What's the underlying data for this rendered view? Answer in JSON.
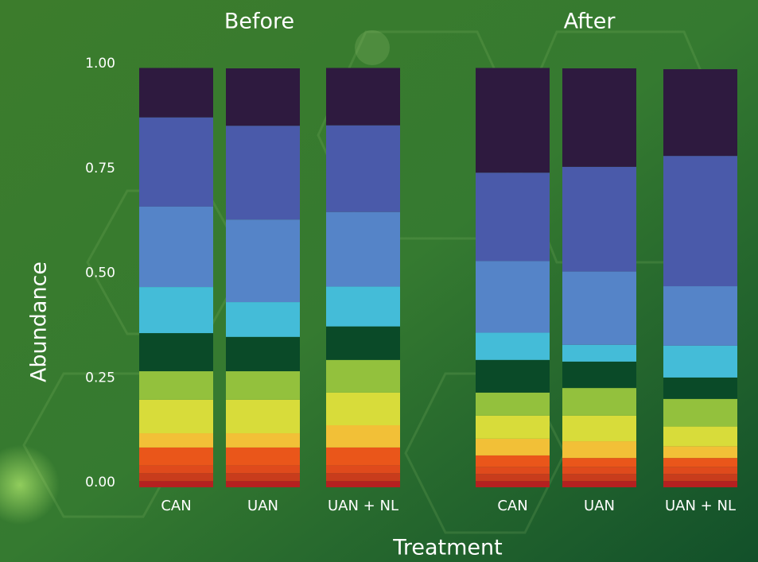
{
  "ylabel": "Abundance",
  "xlabel": "Treatment",
  "chart_data": [
    {
      "type": "stacked_bar",
      "title": "Before",
      "categories": [
        "CAN",
        "UAN",
        "UAN + NL"
      ],
      "ylim": [
        0,
        1
      ],
      "yticks": [
        {
          "value": 0,
          "label": "0.00"
        },
        {
          "value": 0.25,
          "label": "0.25"
        },
        {
          "value": 0.5,
          "label": "0.50"
        },
        {
          "value": 0.75,
          "label": "0.75"
        },
        {
          "value": 1,
          "label": "1.00"
        }
      ],
      "series": [
        {
          "color": "#b52020",
          "values": [
            0.015,
            0.015,
            0.015
          ]
        },
        {
          "color": "#c83c1c",
          "values": [
            0.019,
            0.019,
            0.019
          ]
        },
        {
          "color": "#df4a1c",
          "values": [
            0.019,
            0.019,
            0.019
          ]
        },
        {
          "color": "#ea561a",
          "values": [
            0.042,
            0.042,
            0.042
          ]
        },
        {
          "color": "#f2c037",
          "values": [
            0.034,
            0.034,
            0.053
          ]
        },
        {
          "color": "#d8dc3a",
          "values": [
            0.08,
            0.08,
            0.078
          ]
        },
        {
          "color": "#93c13d",
          "values": [
            0.068,
            0.068,
            0.078
          ]
        },
        {
          "color": "#0a4a28",
          "values": [
            0.091,
            0.082,
            0.08
          ]
        },
        {
          "color": "#44bcd8",
          "values": [
            0.11,
            0.083,
            0.095
          ]
        },
        {
          "color": "#5584c8",
          "values": [
            0.192,
            0.197,
            0.178
          ]
        },
        {
          "color": "#4a5aaa",
          "values": [
            0.213,
            0.224,
            0.207
          ]
        },
        {
          "color": "#2e1a3f",
          "values": [
            0.118,
            0.137,
            0.137
          ]
        }
      ]
    },
    {
      "type": "stacked_bar",
      "title": "After",
      "categories": [
        "CAN",
        "UAN",
        "UAN + NL"
      ],
      "ylim": [
        0,
        1
      ],
      "series": [
        {
          "color": "#b52020",
          "values": [
            0.015,
            0.015,
            0.015
          ]
        },
        {
          "color": "#c83c1c",
          "values": [
            0.017,
            0.017,
            0.017
          ]
        },
        {
          "color": "#df4a1c",
          "values": [
            0.017,
            0.017,
            0.017
          ]
        },
        {
          "color": "#ea561a",
          "values": [
            0.027,
            0.021,
            0.021
          ]
        },
        {
          "color": "#f2c037",
          "values": [
            0.04,
            0.04,
            0.028
          ]
        },
        {
          "color": "#d8dc3a",
          "values": [
            0.055,
            0.061,
            0.047
          ]
        },
        {
          "color": "#93c13d",
          "values": [
            0.055,
            0.066,
            0.066
          ]
        },
        {
          "color": "#0a4a28",
          "values": [
            0.078,
            0.063,
            0.051
          ]
        },
        {
          "color": "#44bcd8",
          "values": [
            0.065,
            0.04,
            0.076
          ]
        },
        {
          "color": "#5584c8",
          "values": [
            0.171,
            0.175,
            0.142
          ]
        },
        {
          "color": "#4a5aaa",
          "values": [
            0.211,
            0.25,
            0.311
          ]
        },
        {
          "color": "#2e1a3f",
          "values": [
            0.25,
            0.235,
            0.207
          ]
        }
      ]
    }
  ]
}
